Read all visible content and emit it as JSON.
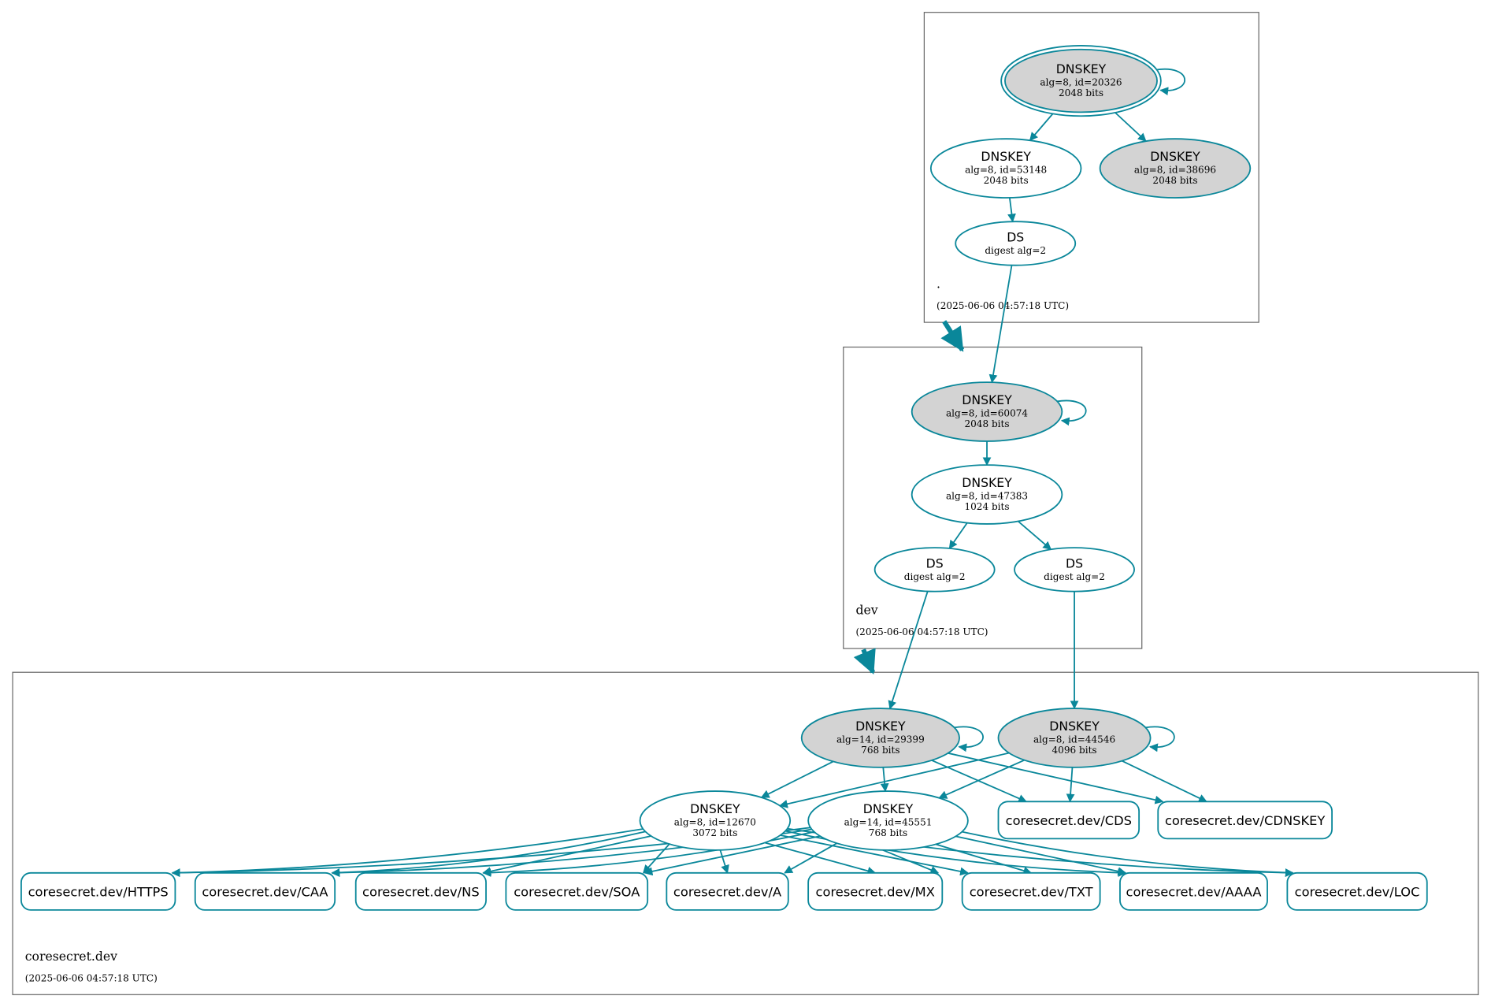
{
  "colors": {
    "edge": "#0a879a",
    "key_fill_gray": "#d3d3d3",
    "zone_border": "#666666"
  },
  "zones": [
    {
      "name": ".",
      "timestamp": "(2025-06-06 04:57:18 UTC)"
    },
    {
      "name": "dev",
      "timestamp": "(2025-06-06 04:57:18 UTC)"
    },
    {
      "name": "coresecret.dev",
      "timestamp": "(2025-06-06 04:57:18 UTC)"
    }
  ],
  "nodes": {
    "k20326": {
      "title": "DNSKEY",
      "line1": "alg=8, id=20326",
      "line2": "2048 bits",
      "filled": true,
      "trust_anchor": true
    },
    "k53148": {
      "title": "DNSKEY",
      "line1": "alg=8, id=53148",
      "line2": "2048 bits",
      "filled": false
    },
    "k38696": {
      "title": "DNSKEY",
      "line1": "alg=8, id=38696",
      "line2": "2048 bits",
      "filled": true
    },
    "dsroot": {
      "title": "DS",
      "line1": "digest alg=2"
    },
    "k60074": {
      "title": "DNSKEY",
      "line1": "alg=8, id=60074",
      "line2": "2048 bits",
      "filled": true
    },
    "k47383": {
      "title": "DNSKEY",
      "line1": "alg=8, id=47383",
      "line2": "1024 bits",
      "filled": false
    },
    "ds1": {
      "title": "DS",
      "line1": "digest alg=2"
    },
    "ds2": {
      "title": "DS",
      "line1": "digest alg=2"
    },
    "k29399": {
      "title": "DNSKEY",
      "line1": "alg=14, id=29399",
      "line2": "768 bits",
      "filled": true
    },
    "k44546": {
      "title": "DNSKEY",
      "line1": "alg=8, id=44546",
      "line2": "4096 bits",
      "filled": true
    },
    "k12670": {
      "title": "DNSKEY",
      "line1": "alg=8, id=12670",
      "line2": "3072 bits",
      "filled": false
    },
    "k45551": {
      "title": "DNSKEY",
      "line1": "alg=14, id=45551",
      "line2": "768 bits",
      "filled": false
    }
  },
  "records": {
    "cds": "coresecret.dev/CDS",
    "cdnskey": "coresecret.dev/CDNSKEY",
    "https": "coresecret.dev/HTTPS",
    "caa": "coresecret.dev/CAA",
    "ns": "coresecret.dev/NS",
    "soa": "coresecret.dev/SOA",
    "a": "coresecret.dev/A",
    "mx": "coresecret.dev/MX",
    "txt": "coresecret.dev/TXT",
    "aaaa": "coresecret.dev/AAAA",
    "loc": "coresecret.dev/LOC"
  },
  "edges": [
    [
      "k20326",
      "k53148"
    ],
    [
      "k20326",
      "k38696"
    ],
    [
      "k53148",
      "dsroot"
    ],
    [
      "dsroot",
      "k60074"
    ],
    [
      "k60074",
      "k47383"
    ],
    [
      "k47383",
      "ds1"
    ],
    [
      "k47383",
      "ds2"
    ],
    [
      "ds1",
      "k29399"
    ],
    [
      "ds2",
      "k44546"
    ],
    [
      "k29399",
      "k12670"
    ],
    [
      "k29399",
      "k45551"
    ],
    [
      "k29399",
      "cds"
    ],
    [
      "k29399",
      "cdnskey"
    ],
    [
      "k44546",
      "k12670"
    ],
    [
      "k44546",
      "k45551"
    ],
    [
      "k44546",
      "cds"
    ],
    [
      "k44546",
      "cdnskey"
    ],
    [
      "k12670",
      "https"
    ],
    [
      "k12670",
      "caa"
    ],
    [
      "k12670",
      "ns"
    ],
    [
      "k12670",
      "soa"
    ],
    [
      "k12670",
      "a"
    ],
    [
      "k12670",
      "mx"
    ],
    [
      "k12670",
      "txt"
    ],
    [
      "k12670",
      "aaaa"
    ],
    [
      "k12670",
      "loc"
    ],
    [
      "k45551",
      "https"
    ],
    [
      "k45551",
      "caa"
    ],
    [
      "k45551",
      "ns"
    ],
    [
      "k45551",
      "soa"
    ],
    [
      "k45551",
      "a"
    ],
    [
      "k45551",
      "mx"
    ],
    [
      "k45551",
      "txt"
    ],
    [
      "k45551",
      "aaaa"
    ],
    [
      "k45551",
      "loc"
    ]
  ],
  "self_loops": [
    "k20326",
    "k60074",
    "k29399",
    "k44546"
  ],
  "delegations": [
    [
      ".",
      "dev"
    ],
    [
      "dev",
      "coresecret.dev"
    ]
  ]
}
